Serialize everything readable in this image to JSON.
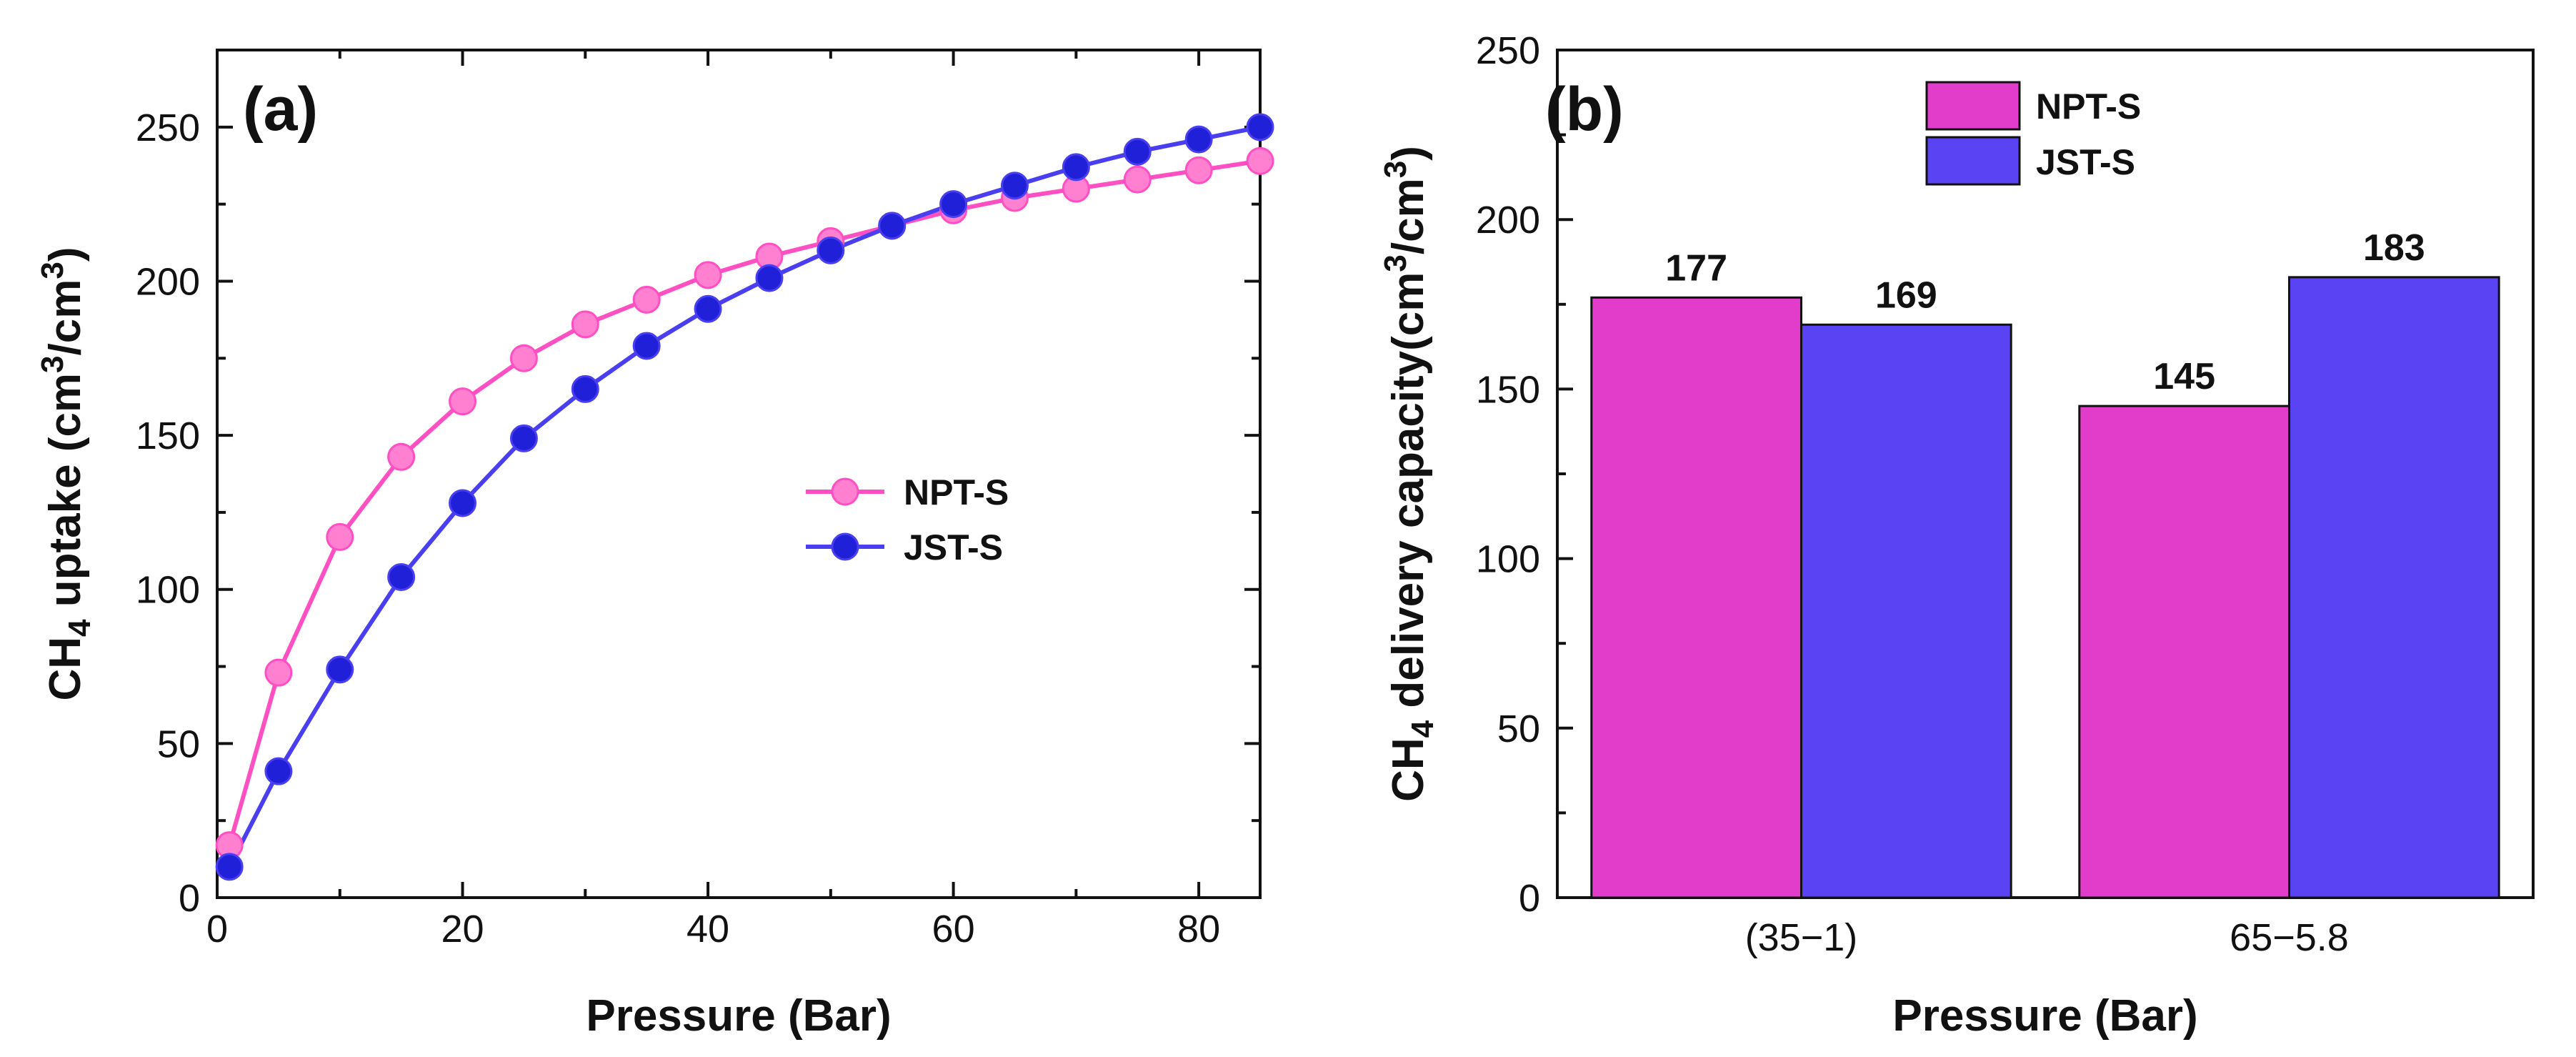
{
  "chart_data": [
    {
      "panel_label": "(a)",
      "type": "line",
      "xlabel": "Pressure (Bar)",
      "ylabel": {
        "pre": "CH",
        "sub": "4",
        "mid": " uptake (cm",
        "sup1": "3",
        "mid2": "/cm",
        "sup2": "3",
        "post": ")"
      },
      "xlim": [
        0,
        85
      ],
      "ylim": [
        0,
        275
      ],
      "xticks": [
        0,
        20,
        40,
        60,
        80
      ],
      "yticks": [
        0,
        50,
        100,
        150,
        200,
        250
      ],
      "x": [
        1,
        5,
        10,
        15,
        20,
        25,
        30,
        35,
        40,
        45,
        50,
        55,
        60,
        65,
        70,
        75,
        80,
        85
      ],
      "series": [
        {
          "name": "NPT-S",
          "color": "#ff4fc3",
          "marker_color": "#ff7fd1",
          "values": [
            17,
            73,
            117,
            143,
            161,
            175,
            186,
            194,
            202,
            208,
            213,
            218,
            223,
            227,
            230,
            233,
            236,
            239
          ]
        },
        {
          "name": "JST-S",
          "color": "#4a3ff0",
          "marker_color": "#2020d8",
          "values": [
            10,
            41,
            74,
            104,
            128,
            149,
            165,
            179,
            191,
            201,
            210,
            218,
            225,
            231,
            237,
            242,
            246,
            250
          ]
        }
      ],
      "legend_position": "center-right"
    },
    {
      "panel_label": "(b)",
      "type": "bar",
      "xlabel": "Pressure (Bar)",
      "ylabel": {
        "pre": "CH",
        "sub": "4",
        "mid": " delivery capacity(cm",
        "sup1": "3",
        "mid2": "/cm",
        "sup2": "3",
        "post": ")"
      },
      "categories": [
        "(35−1)",
        "65−5.8"
      ],
      "ylim": [
        0,
        250
      ],
      "yticks": [
        0,
        50,
        100,
        150,
        200,
        250
      ],
      "series": [
        {
          "name": "NPT-S",
          "color": "#e23ccb",
          "values": [
            177,
            145
          ]
        },
        {
          "name": "JST-S",
          "color": "#5a43f2",
          "values": [
            169,
            183
          ]
        }
      ],
      "data_labels": [
        [
          "177",
          "145"
        ],
        [
          "169",
          "183"
        ]
      ],
      "legend_position": "top-center"
    }
  ]
}
